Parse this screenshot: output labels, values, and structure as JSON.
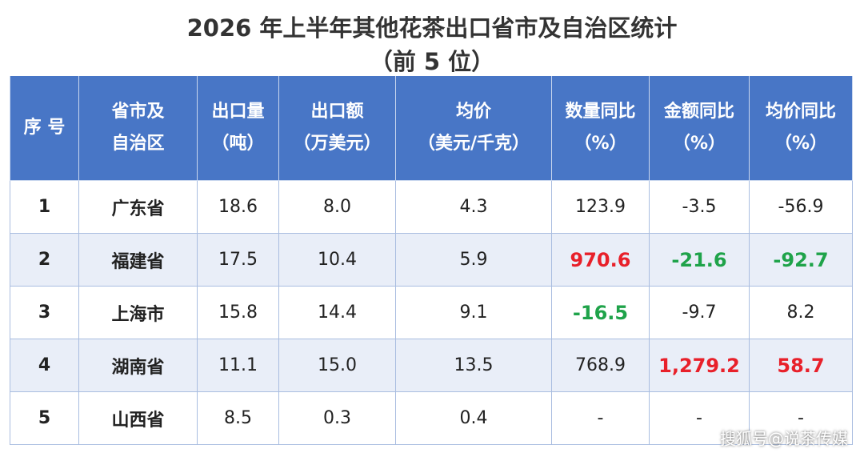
{
  "title": [
    "2026 年上半年其他花茶出口省市及自治区统计",
    "（前 5 位）"
  ],
  "table": {
    "header": [
      [
        "序 号"
      ],
      [
        "省市及",
        "自治区"
      ],
      [
        "出口量",
        "（吨）"
      ],
      [
        "出口额",
        "（万美元）"
      ],
      [
        "均价",
        "（美元/千克）"
      ],
      [
        "数量同比",
        "（%）"
      ],
      [
        "金额同比",
        "（%）"
      ],
      [
        "均价同比",
        "（%）"
      ]
    ],
    "rows": [
      [
        "1",
        "广东省",
        "18.6",
        "8.0",
        "4.3",
        "123.9",
        "-3.5",
        "-56.9"
      ],
      [
        "2",
        "福建省",
        "17.5",
        "10.4",
        "5.9",
        {
          "text": "970.6",
          "color": "#e8202a"
        },
        {
          "text": "-21.6",
          "color": "#1fa34a"
        },
        {
          "text": "-92.7",
          "color": "#1fa34a"
        }
      ],
      [
        "3",
        "上海市",
        "15.8",
        "14.4",
        "9.1",
        {
          "text": "-16.5",
          "color": "#1fa34a"
        },
        "-9.7",
        "8.2"
      ],
      [
        "4",
        "湖南省",
        "11.1",
        "15.0",
        "13.5",
        "768.9",
        {
          "text": "1,279.2",
          "color": "#e8202a"
        },
        {
          "text": "58.7",
          "color": "#e8202a"
        }
      ],
      [
        "5",
        "山西省",
        "8.5",
        "0.3",
        "0.4",
        "-",
        "-",
        "-"
      ]
    ]
  },
  "watermark": "搜狐号@说茶传媒"
}
